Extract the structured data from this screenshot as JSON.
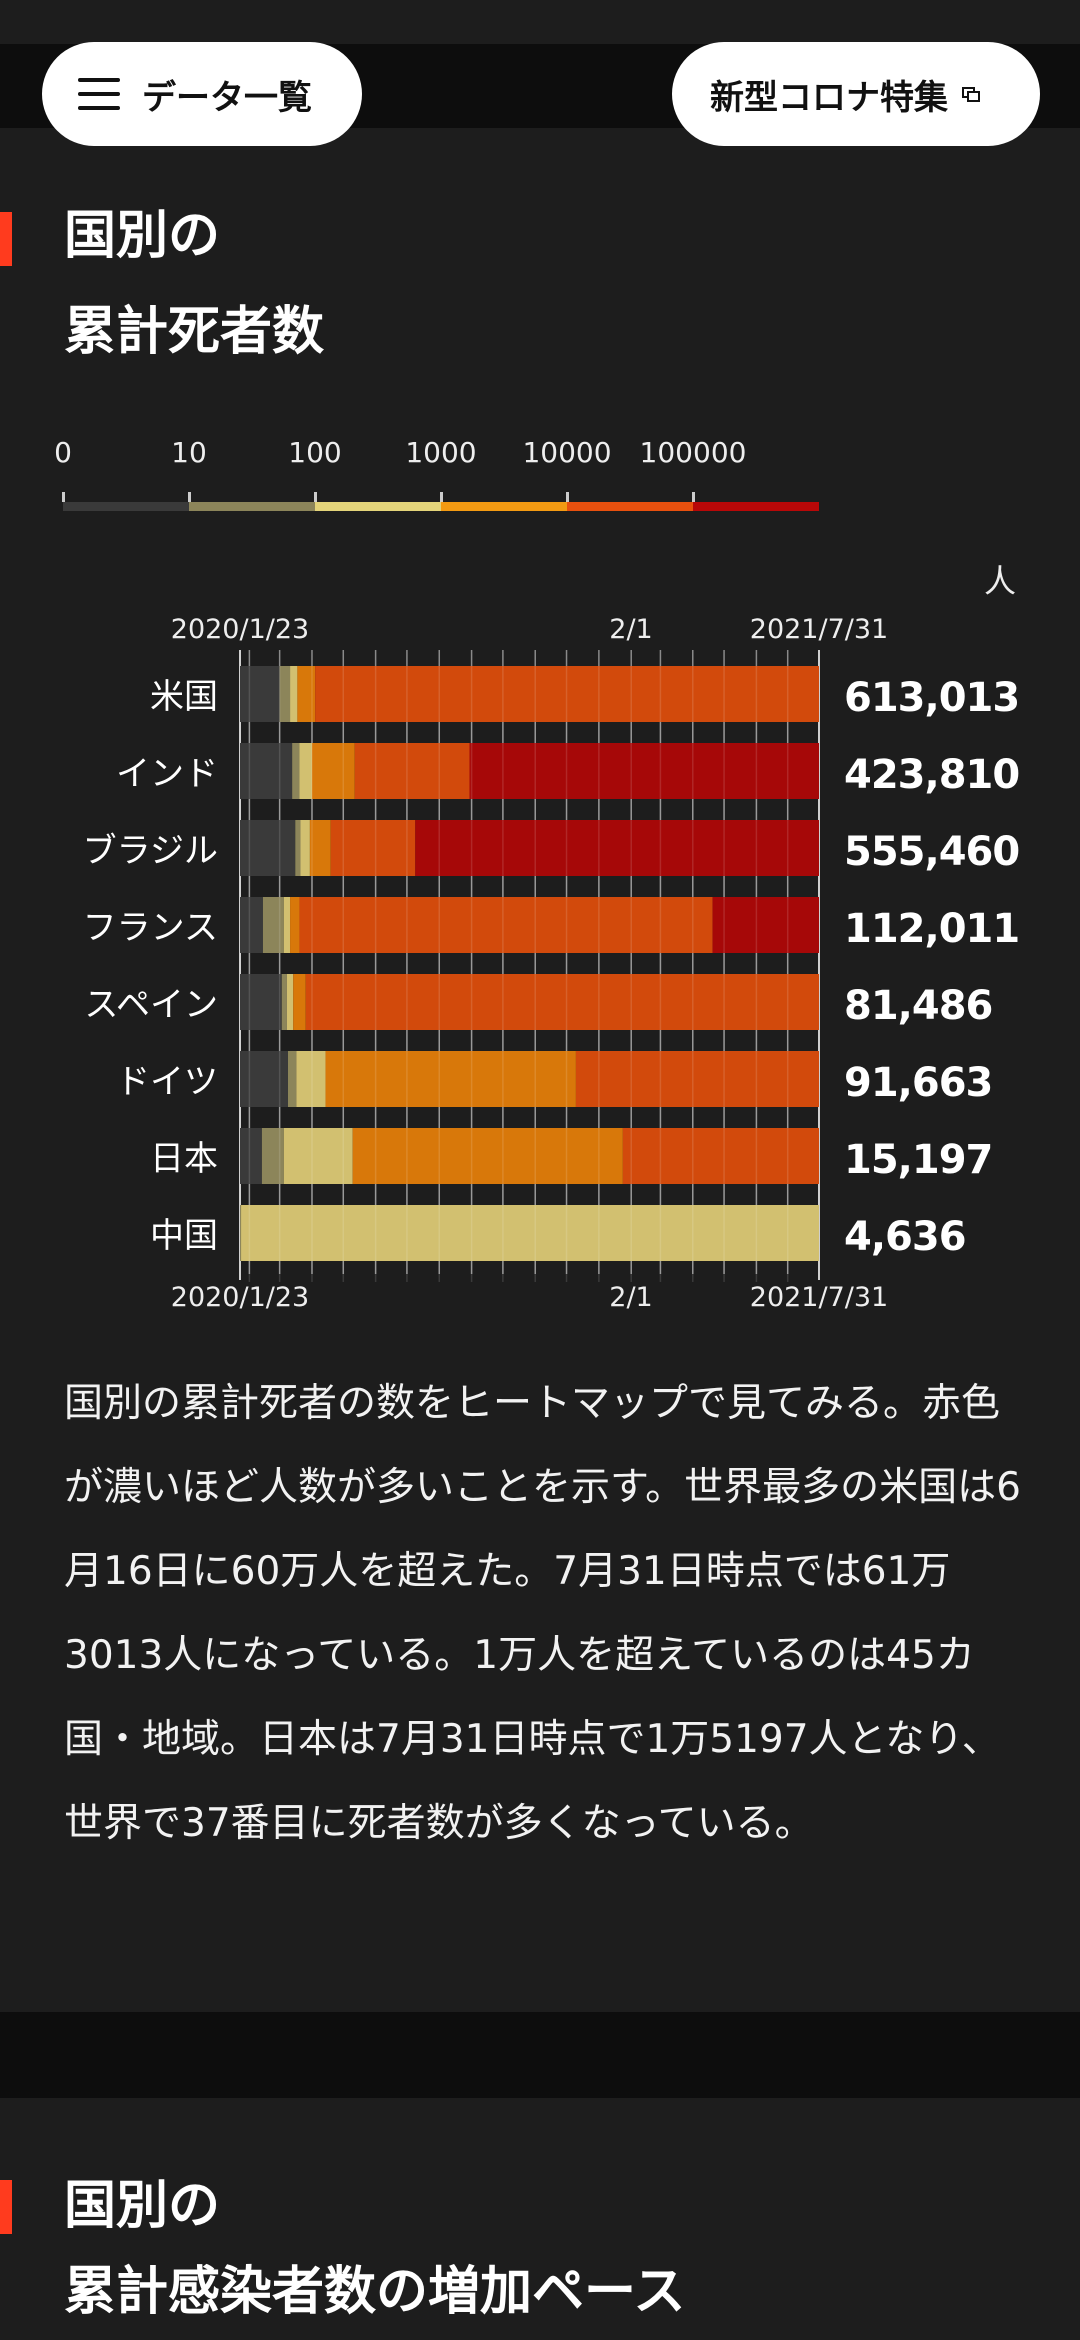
{
  "nav": {
    "menu_label": "データ一覧",
    "special_label": "新型コロナ特集"
  },
  "section1": {
    "heading_line1": "国別の",
    "heading_line2": "累計死者数",
    "unit": "人",
    "description": "国別の累計死者の数をヒートマップで見てみる。赤色が濃いほど人数が多いことを示す。世界最多の米国は6月16日に60万人を超えた。7月31日時点では61万3013人になっている。1万人を超えているのは45カ国・地域。日本は7月31日時点で1万5197人となり、世界で37番目に死者数が多くなっている。"
  },
  "section2": {
    "heading_line1": "国別の",
    "heading_line2": "累計感染者数の増加ペース"
  },
  "chart_data": {
    "type": "heatmap",
    "title": "国別の累計死者数",
    "unit": "人",
    "x_start": "2020/1/23",
    "x_mid": "2/1",
    "x_end": "2021/7/31",
    "date_labels": [
      "2020/1/23",
      "2/1",
      "2021/7/31"
    ],
    "legend": {
      "thresholds": [
        "0",
        "10",
        "100",
        "1000",
        "10000",
        "100000"
      ],
      "colors": [
        "#3a3a3a",
        "#8c855a",
        "#e4d47a",
        "#f39a12",
        "#e8500e",
        "#b80808"
      ]
    },
    "bin_colors": [
      "#3a3a3a",
      "#8c855a",
      "#d2c070",
      "#d8780a",
      "#d24a0c",
      "#a60808"
    ],
    "rows": [
      {
        "country": "米国",
        "total": "613,013",
        "bin_ends": [
          "2020/3/1",
          "2020/3/11",
          "2020/3/18",
          "2020/4/4",
          "2021/7/31"
        ]
      },
      {
        "country": "インド",
        "total": "423,810",
        "bin_ends": [
          "2020/3/13",
          "2020/3/20",
          "2020/4/1",
          "2020/5/12",
          "2020/8/30",
          "2021/7/31"
        ]
      },
      {
        "country": "ブラジル",
        "total": "555,460",
        "bin_ends": [
          "2020/3/16",
          "2020/3/21",
          "2020/3/30",
          "2020/4/19",
          "2020/7/9",
          "2021/7/31"
        ]
      },
      {
        "country": "フランス",
        "total": "112,011",
        "bin_ends": [
          "2020/2/14",
          "2020/3/5",
          "2020/3/11",
          "2020/3/20",
          "2021/4/20",
          "2021/7/31"
        ]
      },
      {
        "country": "スペイン",
        "total": "81,486",
        "bin_ends": [
          "2020/3/3",
          "2020/3/8",
          "2020/3/14",
          "2020/3/26",
          "2021/7/31"
        ]
      },
      {
        "country": "ドイツ",
        "total": "91,663",
        "bin_ends": [
          "2020/3/9",
          "2020/3/17",
          "2020/4/14",
          "2020/12/10",
          "2021/7/31"
        ]
      },
      {
        "country": "日本",
        "total": "15,197",
        "bin_ends": [
          "2020/2/13",
          "2020/3/5",
          "2020/5/10",
          "2021/1/24",
          "2021/7/31"
        ]
      },
      {
        "country": "中国",
        "total": "4,636",
        "bin_ends": [
          "2020/1/23",
          "2020/1/24",
          "2021/7/31"
        ]
      }
    ]
  }
}
